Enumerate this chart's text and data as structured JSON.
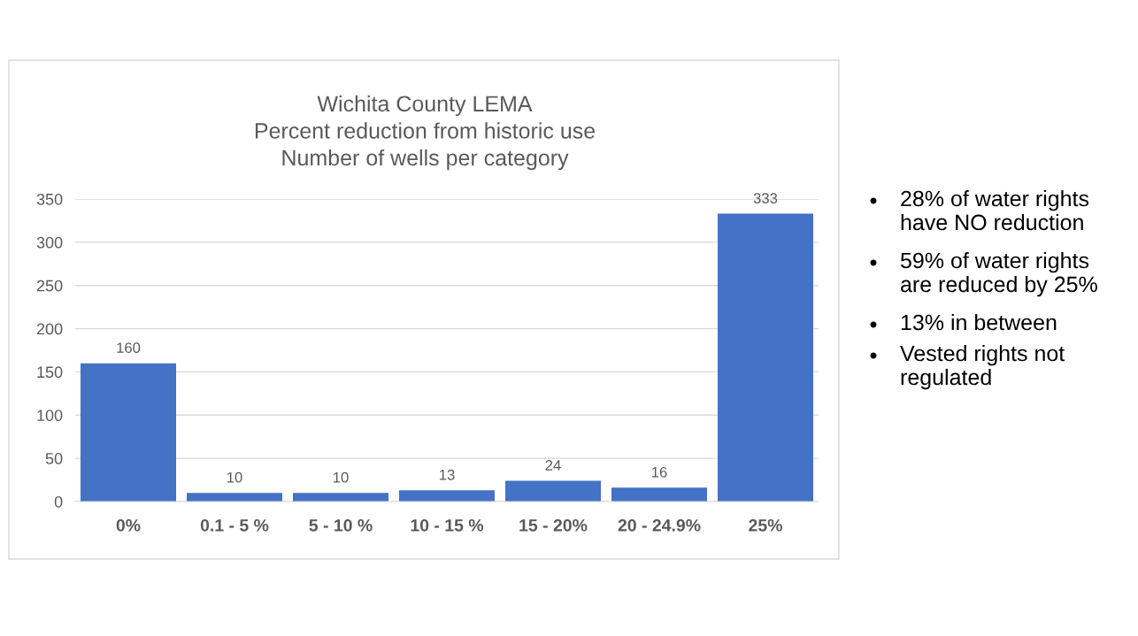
{
  "chart_data": {
    "type": "bar",
    "title": "Wichita County LEMA\nPercent reduction from historic use\nNumber of wells per category",
    "categories": [
      "0%",
      "0.1 - 5 %",
      "5 - 10 %",
      "10 - 15 %",
      "15 - 20%",
      "20 - 24.9%",
      "25%"
    ],
    "values": [
      160,
      10,
      10,
      13,
      24,
      16,
      333
    ],
    "color": "#4472c4",
    "ylim": [
      0,
      350
    ],
    "yticks": [
      0,
      50,
      100,
      150,
      200,
      250,
      300,
      350
    ],
    "grid": "y",
    "data_labels": true,
    "annotations": [
      "28% of water rights\nhave NO reduction",
      "59% of water rights\nare reduced by 25%",
      "13% in between",
      "Vested rights not\nregulated"
    ]
  }
}
